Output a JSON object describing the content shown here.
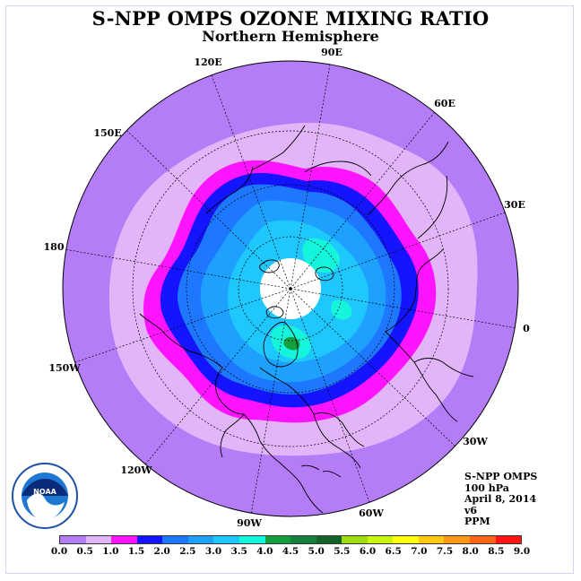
{
  "header": {
    "title": "S-NPP OMPS OZONE MIXING RATIO",
    "subtitle": "Northern Hemisphere"
  },
  "info": {
    "line1": "S-NPP OMPS",
    "line2": "100 hPa",
    "line3": "April 8, 2014",
    "line4": "v6",
    "line5": "PPM"
  },
  "longitude_labels": [
    "90E",
    "60E",
    "30E",
    "0",
    "30W",
    "60W",
    "90W",
    "120W",
    "150W",
    "180",
    "150E",
    "120E"
  ],
  "colorbar": {
    "ticks": [
      "0.0",
      "0.5",
      "1.0",
      "1.5",
      "2.0",
      "2.5",
      "3.0",
      "3.5",
      "4.0",
      "4.5",
      "5.0",
      "5.5",
      "6.0",
      "6.5",
      "7.0",
      "7.5",
      "8.0",
      "8.5",
      "9.0"
    ],
    "colors": [
      "#b57cf7",
      "#e2b4f8",
      "#ff14ff",
      "#1414ff",
      "#1e78ff",
      "#1ea0ff",
      "#1ec8ff",
      "#14f5dc",
      "#14a03c",
      "#14823c",
      "#146428",
      "#a0dc14",
      "#c8f514",
      "#ffff14",
      "#ffc814",
      "#ff9614",
      "#ff6414",
      "#ff1414",
      "#8c5a3c"
    ]
  },
  "logo": {
    "text": "NOAA",
    "ring_text": "NATIONAL OCEANIC AND ATMOSPHERIC ADMINISTRATION · U.S. DEPARTMENT OF COMMERCE"
  }
}
